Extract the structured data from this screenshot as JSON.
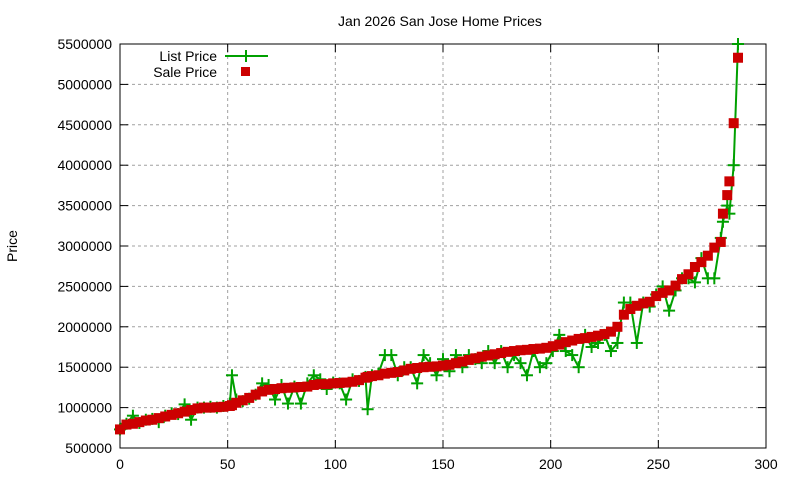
{
  "chart_data": {
    "type": "line",
    "title": "Jan 2026 San Jose Home Prices",
    "xlabel": "",
    "ylabel": "Price",
    "xlim": [
      0,
      300
    ],
    "ylim": [
      500000,
      5500000
    ],
    "xticks": [
      0,
      50,
      100,
      150,
      200,
      250,
      300
    ],
    "yticks": [
      500000,
      1000000,
      1500000,
      2000000,
      2500000,
      3000000,
      3500000,
      4000000,
      4500000,
      5000000,
      5500000
    ],
    "grid": true,
    "legend_position": "top-left",
    "x": [
      0,
      3,
      6,
      9,
      12,
      15,
      18,
      21,
      24,
      27,
      30,
      33,
      36,
      39,
      42,
      45,
      48,
      51,
      52,
      54,
      57,
      60,
      63,
      66,
      69,
      72,
      75,
      78,
      81,
      84,
      87,
      90,
      93,
      96,
      99,
      102,
      105,
      108,
      111,
      114,
      115,
      117,
      120,
      123,
      126,
      129,
      132,
      135,
      138,
      141,
      144,
      147,
      150,
      153,
      156,
      159,
      162,
      165,
      168,
      171,
      174,
      177,
      180,
      183,
      186,
      189,
      192,
      195,
      198,
      201,
      204,
      207,
      210,
      213,
      216,
      219,
      222,
      225,
      228,
      231,
      234,
      237,
      240,
      243,
      246,
      249,
      252,
      255,
      258,
      261,
      264,
      267,
      270,
      273,
      276,
      279,
      280,
      282,
      283,
      285,
      287
    ],
    "series": [
      {
        "name": "List Price",
        "style": "linespoints",
        "color": "#00a000",
        "marker": "plus",
        "values": [
          730000,
          800000,
          900000,
          810000,
          850000,
          860000,
          820000,
          900000,
          930000,
          920000,
          1040000,
          850000,
          1000000,
          1000000,
          1010000,
          1000000,
          1020000,
          1050000,
          1400000,
          1100000,
          1080000,
          1110000,
          1160000,
          1300000,
          1280000,
          1100000,
          1280000,
          1050000,
          1260000,
          1050000,
          1300000,
          1400000,
          1350000,
          1230000,
          1310000,
          1300000,
          1100000,
          1350000,
          1330000,
          1380000,
          980000,
          1400000,
          1420000,
          1650000,
          1650000,
          1400000,
          1500000,
          1500000,
          1300000,
          1650000,
          1550000,
          1400000,
          1600000,
          1450000,
          1650000,
          1500000,
          1650000,
          1600000,
          1550000,
          1700000,
          1550000,
          1700000,
          1500000,
          1650000,
          1550000,
          1400000,
          1700000,
          1500000,
          1550000,
          1700000,
          1900000,
          1700000,
          1650000,
          1500000,
          1900000,
          1750000,
          1800000,
          1900000,
          1700000,
          1800000,
          2300000,
          2300000,
          1800000,
          2300000,
          2250000,
          2400000,
          2500000,
          2200000,
          2450000,
          2600000,
          2600000,
          2550000,
          2850000,
          2600000,
          2600000,
          3100000,
          3300000,
          3500000,
          3400000,
          4000000,
          5500000
        ]
      },
      {
        "name": "Sale Price",
        "style": "points",
        "color": "#cc0000",
        "marker": "square",
        "values": [
          730000,
          790000,
          800000,
          820000,
          840000,
          850000,
          870000,
          890000,
          910000,
          930000,
          950000,
          970000,
          990000,
          1000000,
          1000000,
          1005000,
          1010000,
          1020000,
          1030000,
          1060000,
          1090000,
          1120000,
          1160000,
          1200000,
          1220000,
          1230000,
          1240000,
          1245000,
          1250000,
          1255000,
          1260000,
          1280000,
          1290000,
          1290000,
          1300000,
          1305000,
          1310000,
          1320000,
          1340000,
          1370000,
          1380000,
          1390000,
          1400000,
          1420000,
          1430000,
          1440000,
          1460000,
          1480000,
          1490000,
          1500000,
          1505000,
          1510000,
          1520000,
          1530000,
          1550000,
          1570000,
          1590000,
          1610000,
          1630000,
          1645000,
          1660000,
          1675000,
          1690000,
          1700000,
          1710000,
          1715000,
          1725000,
          1730000,
          1740000,
          1760000,
          1780000,
          1810000,
          1830000,
          1850000,
          1860000,
          1875000,
          1890000,
          1910000,
          1940000,
          2000000,
          2150000,
          2220000,
          2260000,
          2290000,
          2310000,
          2380000,
          2420000,
          2450000,
          2510000,
          2590000,
          2650000,
          2740000,
          2800000,
          2880000,
          2980000,
          3050000,
          3400000,
          3630000,
          3800000,
          4520000,
          5330000
        ]
      }
    ]
  }
}
